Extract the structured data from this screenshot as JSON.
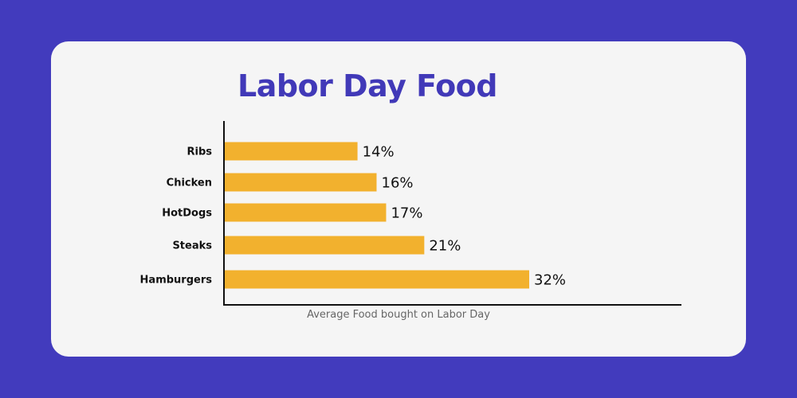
{
  "colors": {
    "background": "#423bbd",
    "card": "#f5f5f5",
    "title": "#4139b8",
    "bar": "#f2b12e",
    "axis": "#111111"
  },
  "chart_data": {
    "type": "bar",
    "orientation": "horizontal",
    "title": "Labor Day Food",
    "xlabel": "Average Food bought on Labor Day",
    "ylabel": "",
    "categories": [
      "Ribs",
      "Chicken",
      "HotDogs",
      "Steaks",
      "Hamburgers"
    ],
    "values": [
      14,
      16,
      17,
      21,
      32
    ],
    "value_labels": [
      "14%",
      "16%",
      "17%",
      "21%",
      "32%"
    ],
    "unit": "%",
    "xlim": [
      0,
      43
    ],
    "grid": false,
    "legend": "none"
  }
}
